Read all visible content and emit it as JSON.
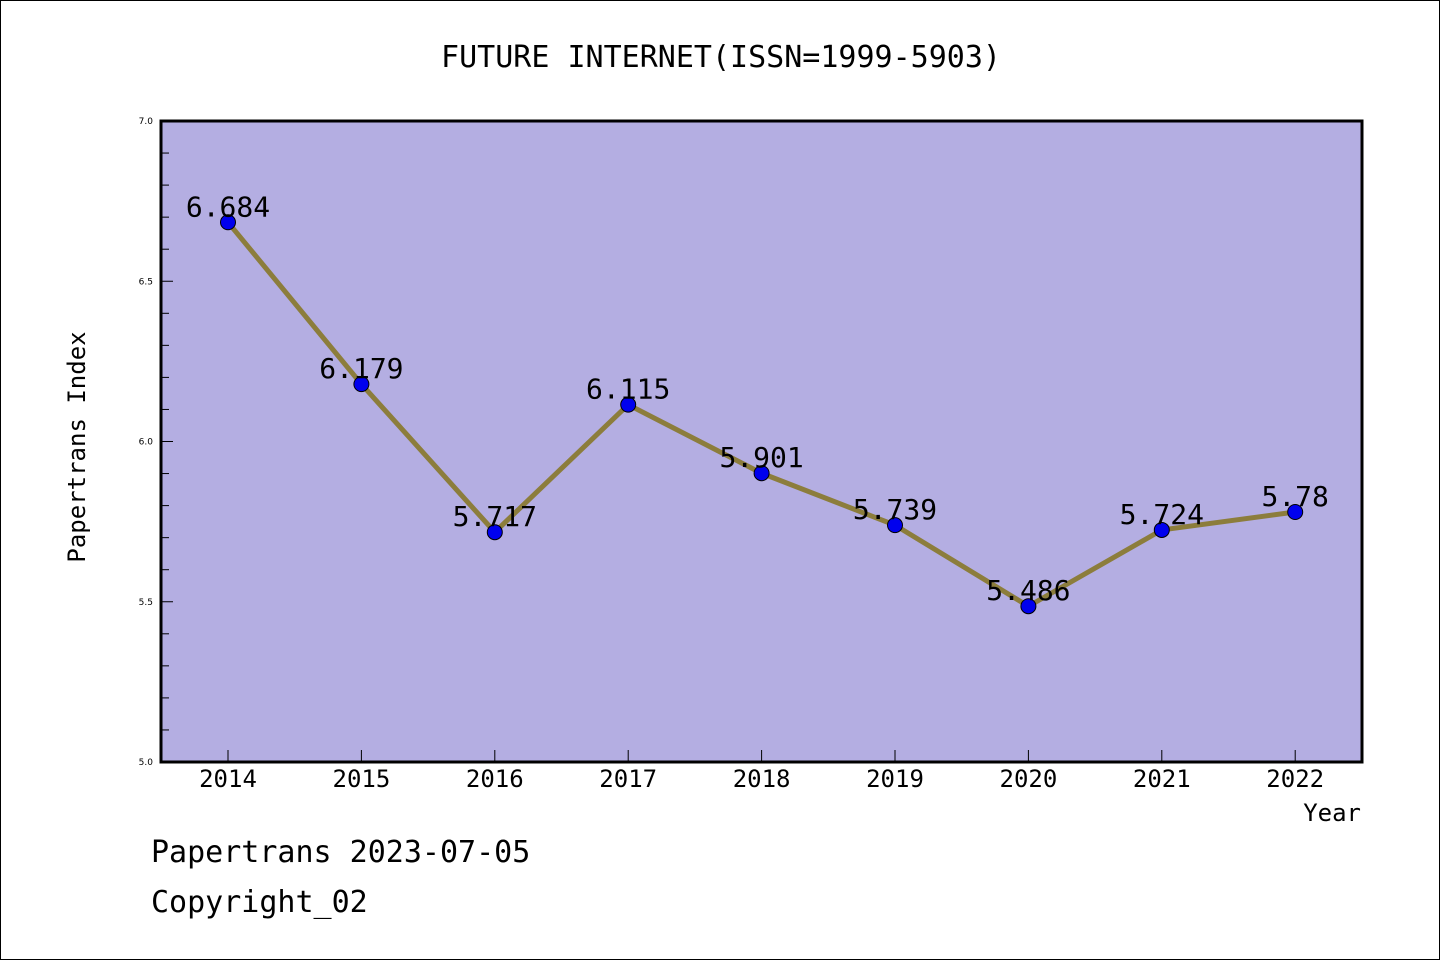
{
  "chart_data": {
    "type": "line",
    "title": "FUTURE INTERNET(ISSN=1999-5903)",
    "xlabel": "Year",
    "ylabel": "Papertrans Index",
    "categories": [
      "2014",
      "2015",
      "2016",
      "2017",
      "2018",
      "2019",
      "2020",
      "2021",
      "2022"
    ],
    "series": [
      {
        "values": [
          6.684,
          6.179,
          5.717,
          6.115,
          5.901,
          5.739,
          5.486,
          5.724,
          5.78
        ]
      }
    ],
    "data_labels": [
      "6.684",
      "6.179",
      "5.717",
      "6.115",
      "5.901",
      "5.739",
      "5.486",
      "5.724",
      "5.78"
    ],
    "ylim": [
      5.0,
      7.0
    ],
    "yticks": [
      "5.0",
      "5.5",
      "6.0",
      "6.5",
      "7.0"
    ],
    "grid": false,
    "legend": "none",
    "colors": {
      "plot_background": "#b4aee2",
      "line": "#8c7d3c",
      "marker": "#0000ee"
    }
  },
  "footer": {
    "line1": "Papertrans 2023-07-05",
    "line2": "Copyright_02"
  }
}
